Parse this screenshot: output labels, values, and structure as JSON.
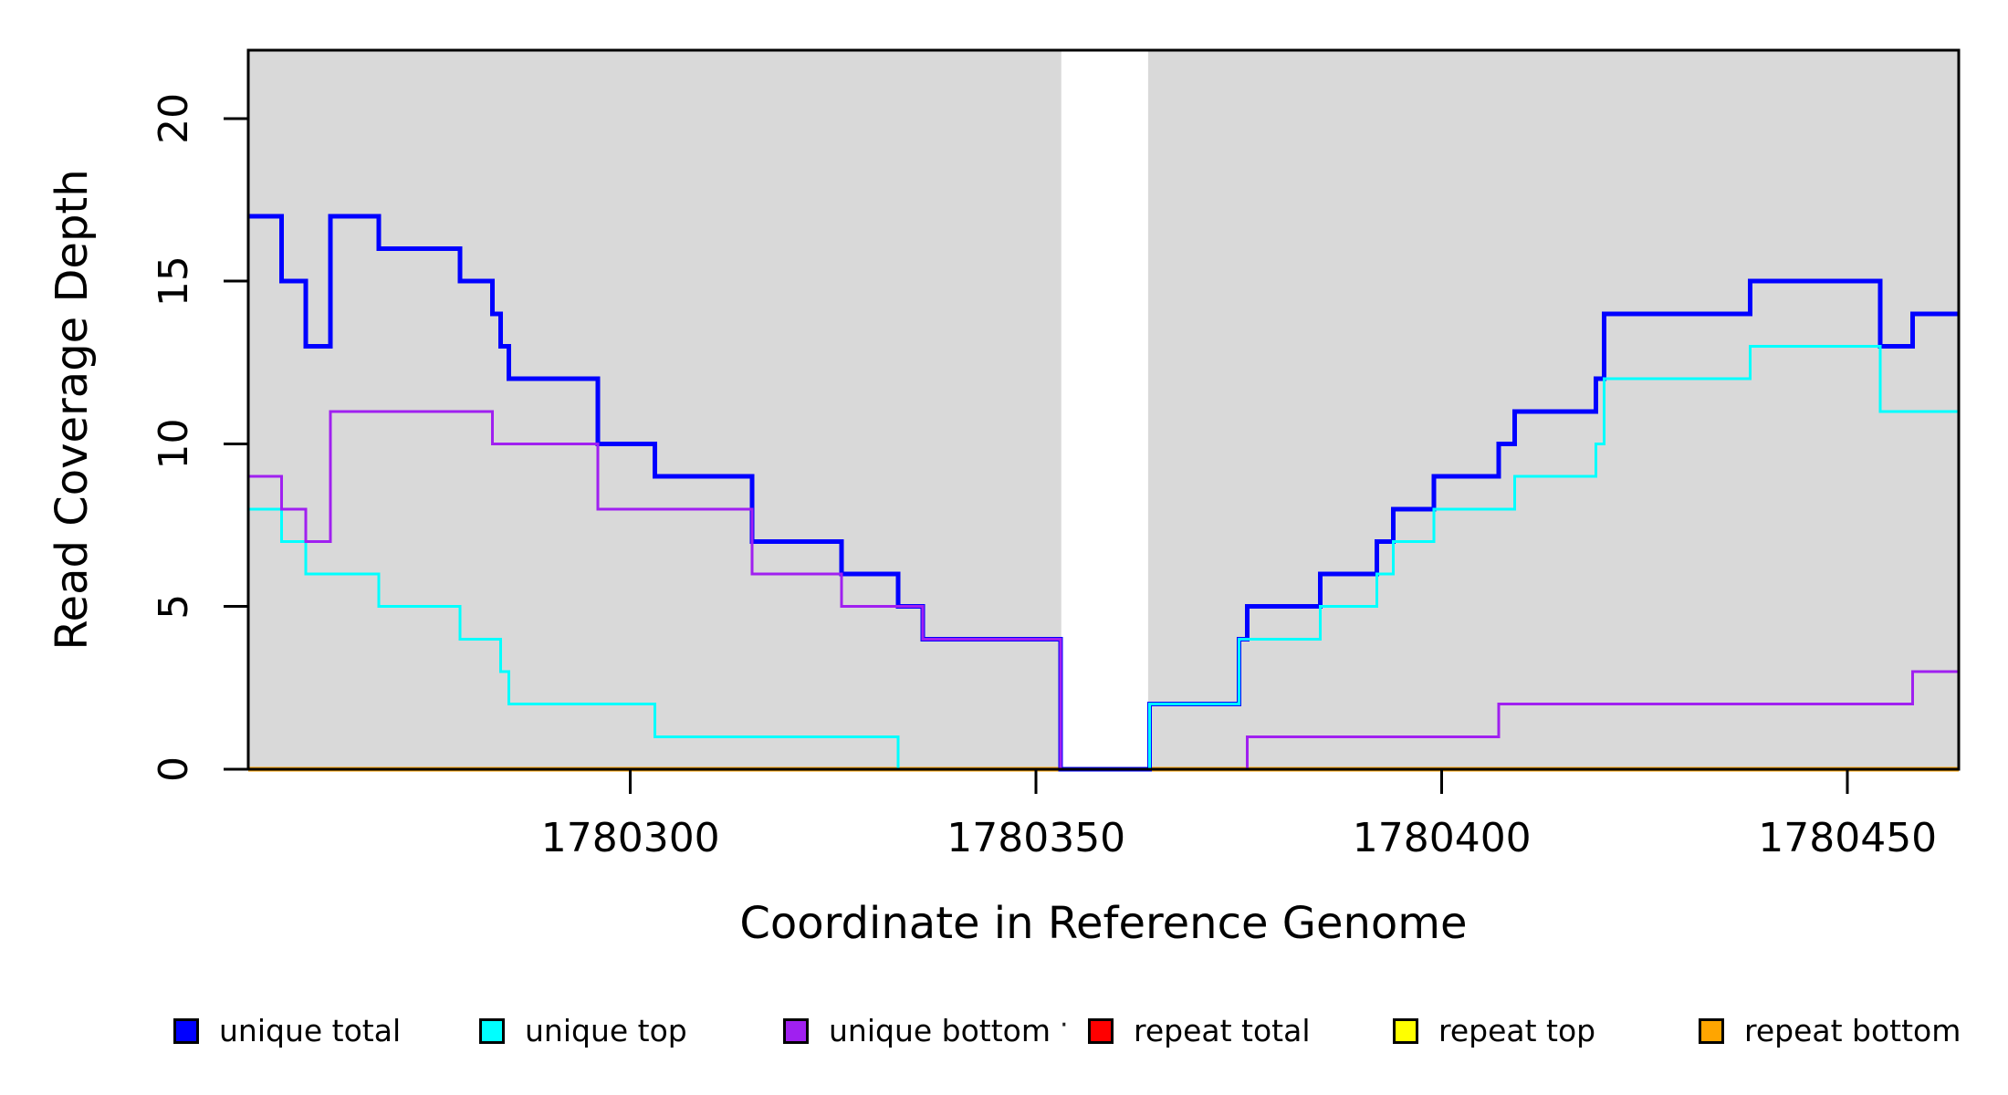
{
  "figure": {
    "background": "#FFFFFF",
    "plot_background": "#D9D9D9",
    "border_color": "#000000",
    "tick_color": "#000000"
  },
  "axes": {
    "y_label": "Read Coverage Depth",
    "x_label": "Coordinate in Reference Genome",
    "y_ticks": [
      0,
      5,
      10,
      15,
      20
    ],
    "y_tick_labels": [
      "0",
      "5",
      "10",
      "15",
      "20"
    ],
    "x_ticks": [
      1780300,
      1780350,
      1780400,
      1780450
    ],
    "x_tick_labels": [
      "1780300",
      "1780350",
      "1780400",
      "1780450"
    ]
  },
  "stray_mark": "·",
  "legend": {
    "items": [
      {
        "label": "unique total",
        "color": "#0000FF"
      },
      {
        "label": "unique top",
        "color": "#00FFFF"
      },
      {
        "label": "unique bottom",
        "color": "#A020F0"
      },
      {
        "label": "repeat total",
        "color": "#FF0000"
      },
      {
        "label": "repeat top",
        "color": "#FFFF00"
      },
      {
        "label": "repeat bottom",
        "color": "#FFA500"
      }
    ]
  },
  "chart_data": {
    "type": "line",
    "step": true,
    "title": "",
    "xlabel": "Coordinate in Reference Genome",
    "ylabel": "Read Coverage Depth",
    "xlim": [
      1780252.9,
      1780463.7
    ],
    "ylim": [
      0,
      22.1
    ],
    "grid": false,
    "legend_position": "bottom",
    "shaded_regions": [
      {
        "x0": 1780252.9,
        "x1": 1780353.1,
        "color": "#D9D9D9"
      },
      {
        "x0": 1780363.8,
        "x1": 1780463.7,
        "color": "#D9D9D9"
      }
    ],
    "series": [
      {
        "name": "repeat total",
        "color": "#FF0000",
        "width": 3,
        "points": [
          [
            1780252.9,
            0
          ],
          [
            1780463.7,
            0
          ]
        ]
      },
      {
        "name": "repeat top",
        "color": "#FFFF00",
        "width": 3,
        "points": [
          [
            1780252.9,
            0
          ],
          [
            1780463.7,
            0
          ]
        ]
      },
      {
        "name": "repeat bottom",
        "color": "#FFA500",
        "width": 5,
        "points": [
          [
            1780252.9,
            0
          ],
          [
            1780463.7,
            0
          ]
        ]
      },
      {
        "name": "unique total",
        "color": "#0000FF",
        "width": 5,
        "points": [
          [
            1780252.9,
            17
          ],
          [
            1780257,
            15
          ],
          [
            1780260,
            13
          ],
          [
            1780263,
            17
          ],
          [
            1780269,
            16
          ],
          [
            1780279,
            15
          ],
          [
            1780283,
            14
          ],
          [
            1780284,
            13
          ],
          [
            1780285,
            12
          ],
          [
            1780296,
            10
          ],
          [
            1780303,
            9
          ],
          [
            1780315,
            7
          ],
          [
            1780326,
            6
          ],
          [
            1780333,
            5
          ],
          [
            1780336,
            4
          ],
          [
            1780353,
            0
          ],
          [
            1780364,
            2
          ],
          [
            1780375,
            4
          ],
          [
            1780376,
            5
          ],
          [
            1780385,
            6
          ],
          [
            1780392,
            7
          ],
          [
            1780394,
            8
          ],
          [
            1780399,
            9
          ],
          [
            1780407,
            10
          ],
          [
            1780409,
            11
          ],
          [
            1780419,
            12
          ],
          [
            1780420,
            14
          ],
          [
            1780438,
            15
          ],
          [
            1780454,
            13
          ],
          [
            1780458,
            14
          ],
          [
            1780463.7,
            14
          ]
        ]
      },
      {
        "name": "unique top",
        "color": "#00FFFF",
        "width": 3,
        "points": [
          [
            1780252.9,
            8
          ],
          [
            1780257,
            7
          ],
          [
            1780260,
            6
          ],
          [
            1780269,
            5
          ],
          [
            1780279,
            4
          ],
          [
            1780284,
            3
          ],
          [
            1780285,
            2
          ],
          [
            1780303,
            1
          ],
          [
            1780333,
            0
          ],
          [
            1780364,
            2
          ],
          [
            1780375,
            4
          ],
          [
            1780385,
            5
          ],
          [
            1780392,
            6
          ],
          [
            1780394,
            7
          ],
          [
            1780399,
            8
          ],
          [
            1780409,
            9
          ],
          [
            1780419,
            10
          ],
          [
            1780420,
            12
          ],
          [
            1780438,
            13
          ],
          [
            1780454,
            11
          ],
          [
            1780463.7,
            11
          ]
        ]
      },
      {
        "name": "unique bottom",
        "color": "#A020F0",
        "width": 3,
        "points": [
          [
            1780252.9,
            9
          ],
          [
            1780257,
            8
          ],
          [
            1780260,
            7
          ],
          [
            1780263,
            11
          ],
          [
            1780283,
            10
          ],
          [
            1780296,
            8
          ],
          [
            1780315,
            6
          ],
          [
            1780326,
            5
          ],
          [
            1780336,
            4
          ],
          [
            1780353,
            0
          ],
          [
            1780376,
            1
          ],
          [
            1780407,
            2
          ],
          [
            1780458,
            3
          ],
          [
            1780463.7,
            3
          ]
        ]
      }
    ]
  }
}
